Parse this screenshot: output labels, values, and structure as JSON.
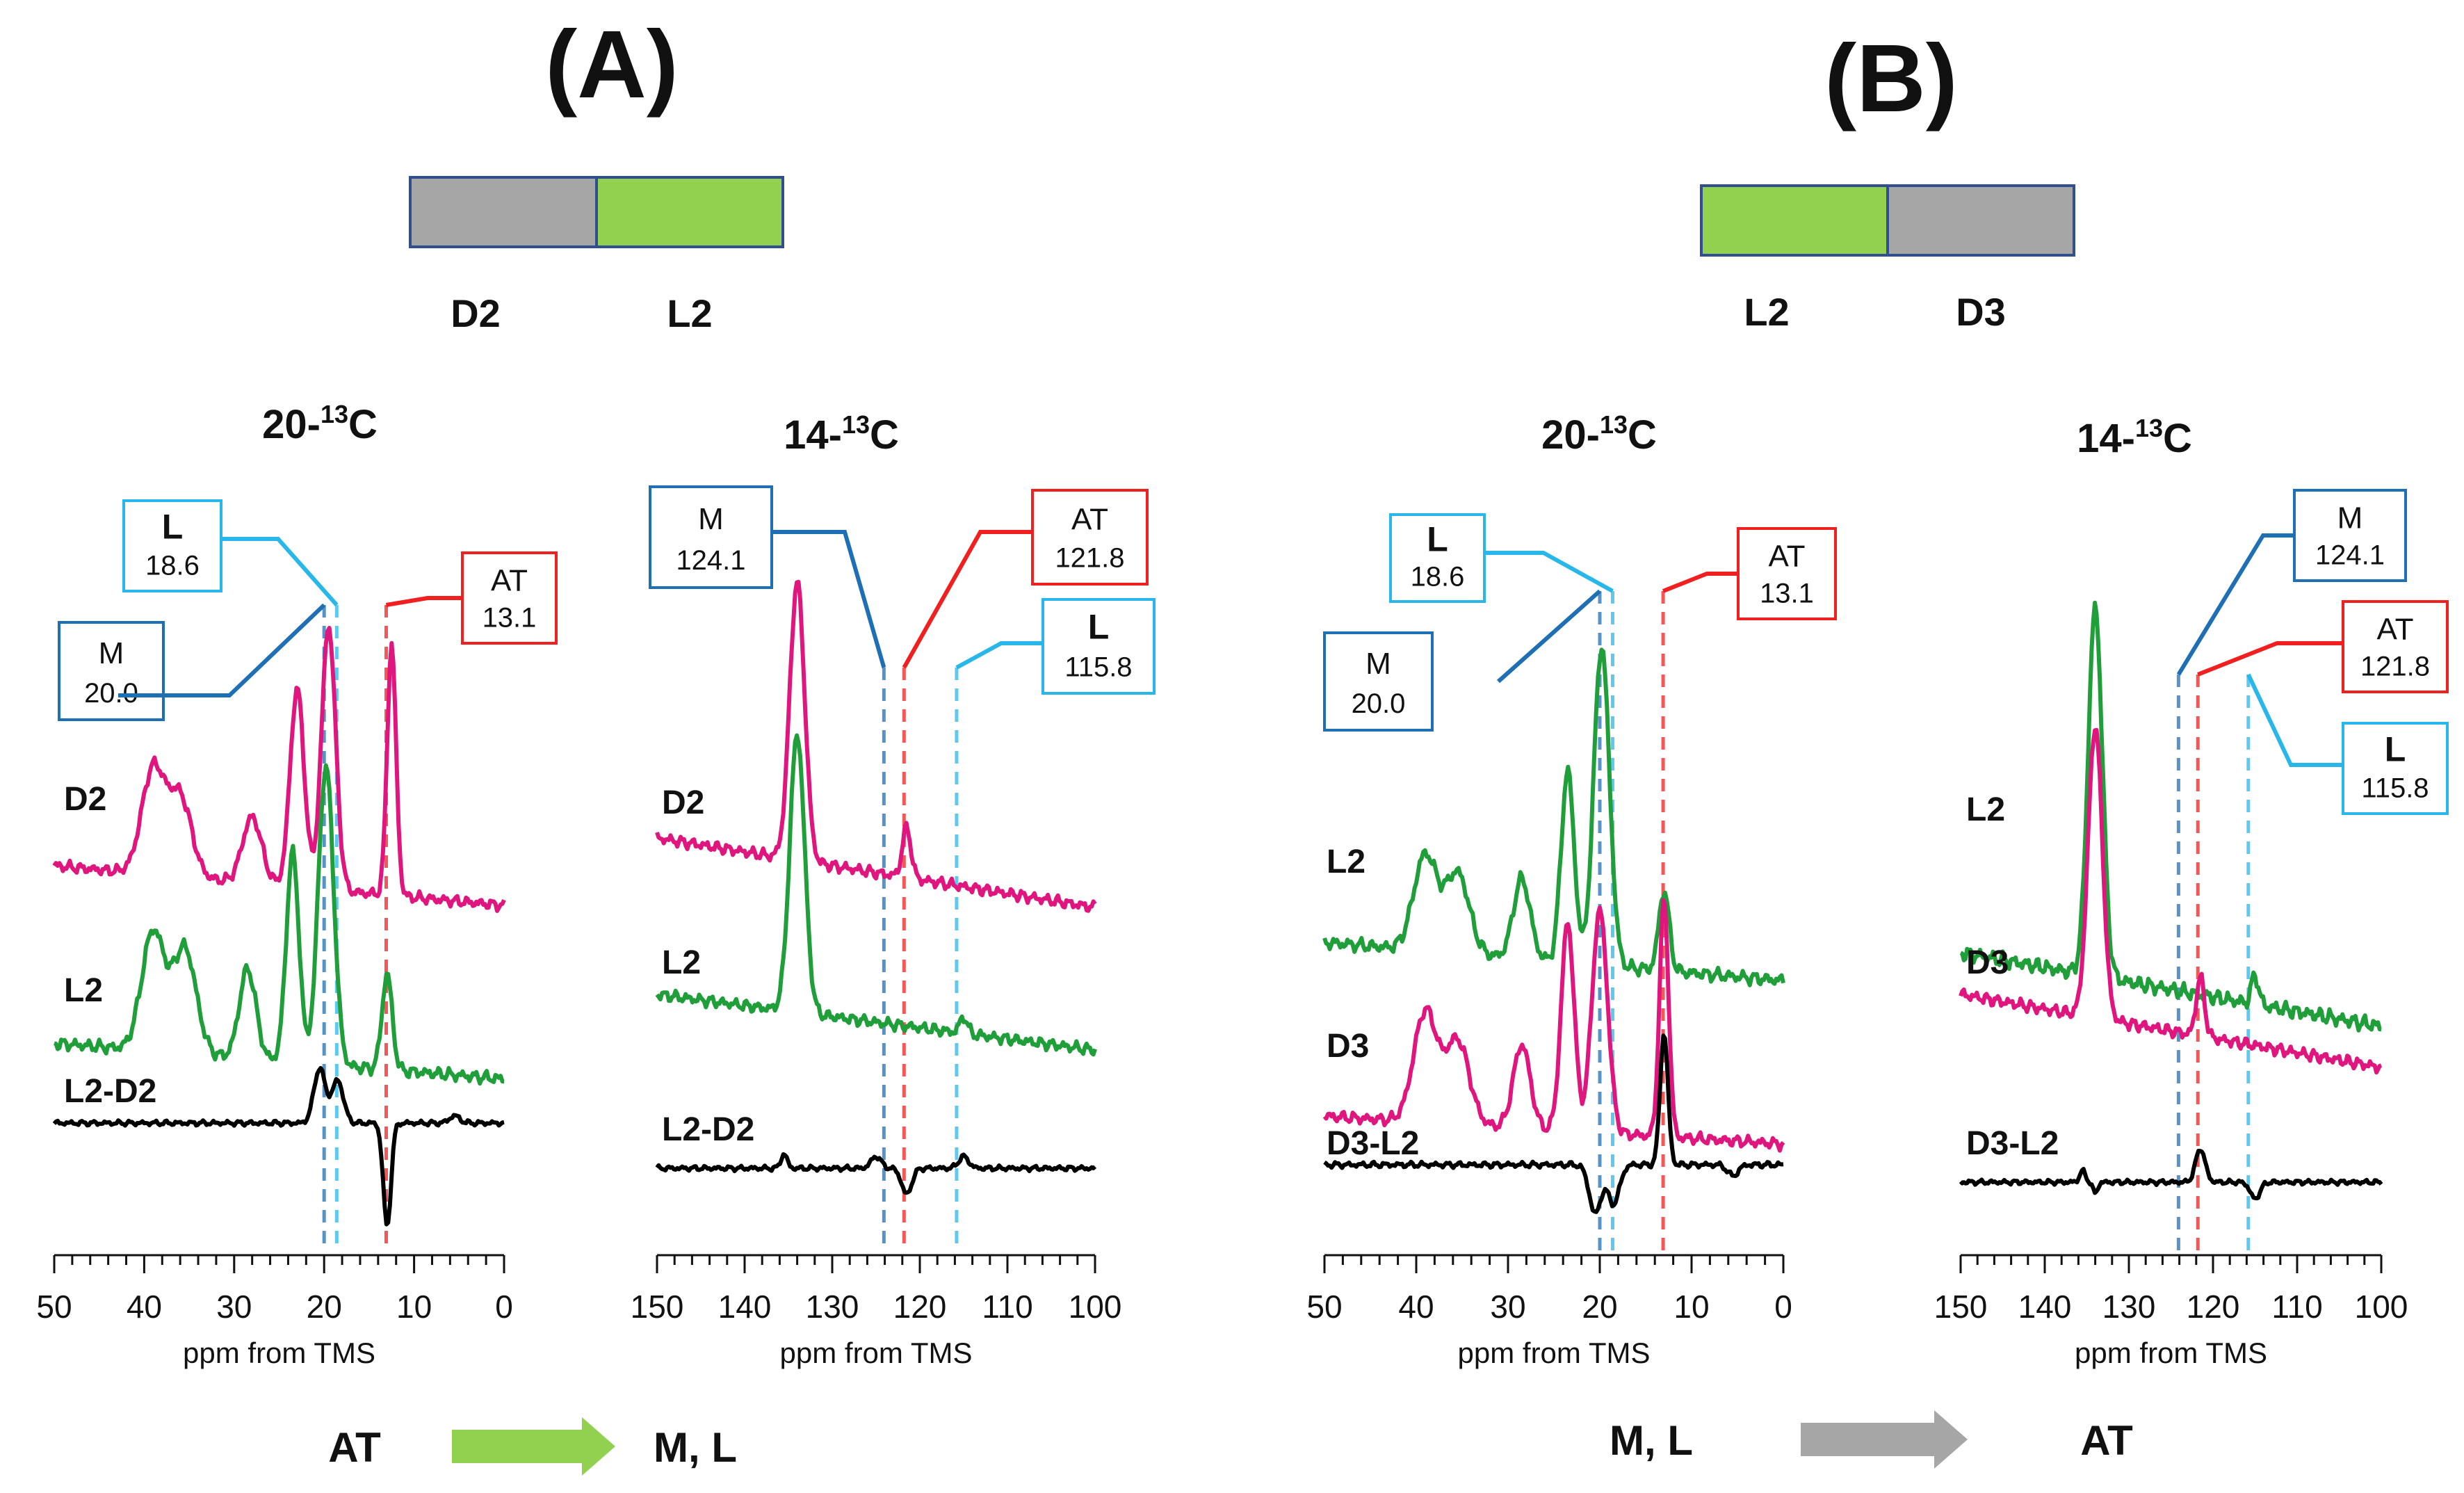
{
  "colors": {
    "magenta": "#e0167f",
    "green": "#1f9e3a",
    "black": "#000000",
    "dark_blue": "#1f6fb5",
    "light_blue": "#29b7ea",
    "red": "#f02020",
    "segment_gray": "#a6a6a6",
    "segment_green": "#92d050",
    "segment_border": "#2f4f8f",
    "arrow_green": "#92d050",
    "arrow_gray": "#a6a6a6"
  },
  "panels": [
    {
      "label": "(A)",
      "segments": [
        {
          "name": "D2",
          "color": "gray"
        },
        {
          "name": "L2",
          "color": "green"
        }
      ],
      "flow": {
        "from": "AT",
        "to": "M, L",
        "arrow_color": "green"
      }
    },
    {
      "label": "(B)",
      "segments": [
        {
          "name": "L2",
          "color": "green"
        },
        {
          "name": "D3",
          "color": "gray"
        }
      ],
      "flow": {
        "from": "M, L",
        "to": "AT",
        "arrow_color": "gray"
      }
    }
  ],
  "chart_data": [
    {
      "id": "A-20",
      "type": "line",
      "title_main": "20-",
      "title_sup": "13",
      "title_tail": "C",
      "title": "20-13C",
      "xlabel": "ppm from TMS",
      "xlim": [
        50,
        0
      ],
      "xticks": [
        "50",
        "40",
        "30",
        "20",
        "10",
        "0"
      ],
      "tick_values": [
        50,
        40,
        30,
        20,
        10,
        0
      ],
      "series": [
        {
          "name": "D2",
          "color": "magenta",
          "peaks": [
            {
              "x": 39,
              "h": 0.4,
              "w": 1.8
            },
            {
              "x": 36,
              "h": 0.3,
              "w": 1.8
            },
            {
              "x": 28,
              "h": 0.25,
              "w": 1.5
            },
            {
              "x": 23,
              "h": 0.75,
              "w": 1.1
            },
            {
              "x": 19.5,
              "h": 1.0,
              "w": 1.1
            },
            {
              "x": 12.5,
              "h": 0.95,
              "w": 0.7
            }
          ],
          "baseline_drop": 0.15
        },
        {
          "name": "L2",
          "color": "green",
          "peaks": [
            {
              "x": 39,
              "h": 0.4,
              "w": 1.8
            },
            {
              "x": 35.5,
              "h": 0.35,
              "w": 1.8
            },
            {
              "x": 28.5,
              "h": 0.3,
              "w": 1.3
            },
            {
              "x": 23.5,
              "h": 0.7,
              "w": 1.0
            },
            {
              "x": 19.8,
              "h": 1.0,
              "w": 1.2
            },
            {
              "x": 13,
              "h": 0.32,
              "w": 0.8
            }
          ],
          "baseline_drop": 0.12
        },
        {
          "name": "L2-D2",
          "color": "black",
          "peaks": [
            {
              "x": 20.5,
              "h": 0.45,
              "w": 0.9
            },
            {
              "x": 18.5,
              "h": 0.35,
              "w": 0.9
            },
            {
              "x": 13,
              "h": -0.85,
              "w": 0.6
            },
            {
              "x": 5.5,
              "h": 0.06,
              "w": 0.8
            }
          ],
          "baseline_drop": 0
        }
      ],
      "markers": [
        {
          "name": "M",
          "value": "20.0",
          "x": 20.0,
          "color": "dark_blue",
          "bold": false
        },
        {
          "name": "L",
          "value": "18.6",
          "x": 18.6,
          "color": "light_blue",
          "bold": true
        },
        {
          "name": "AT",
          "value": "13.1",
          "x": 13.1,
          "color": "red",
          "bold": false
        }
      ]
    },
    {
      "id": "A-14",
      "type": "line",
      "title_main": "14-",
      "title_sup": "13",
      "title_tail": "C",
      "title": "14-13C",
      "xlabel": "ppm from TMS",
      "xlim": [
        150,
        100
      ],
      "xticks": [
        "150",
        "140",
        "130",
        "120",
        "110",
        "100"
      ],
      "tick_values": [
        150,
        140,
        130,
        120,
        110,
        100
      ],
      "series": [
        {
          "name": "D2",
          "color": "magenta",
          "peaks": [
            {
              "x": 134,
              "h": 1.0,
              "w": 1.2
            },
            {
              "x": 121.5,
              "h": 0.18,
              "w": 0.7
            }
          ],
          "baseline_drop": 0.25
        },
        {
          "name": "L2",
          "color": "green",
          "peaks": [
            {
              "x": 134,
              "h": 1.0,
              "w": 1.2
            },
            {
              "x": 115,
              "h": 0.06,
              "w": 0.6
            }
          ],
          "baseline_drop": 0.2
        },
        {
          "name": "L2-D2",
          "color": "black",
          "peaks": [
            {
              "x": 135.5,
              "h": 0.12,
              "w": 0.5
            },
            {
              "x": 125,
              "h": 0.1,
              "w": 0.8
            },
            {
              "x": 121.5,
              "h": -0.22,
              "w": 0.8
            },
            {
              "x": 115,
              "h": 0.1,
              "w": 0.8
            }
          ],
          "baseline_drop": 0
        }
      ],
      "markers": [
        {
          "name": "M",
          "value": "124.1",
          "x": 124.1,
          "color": "dark_blue",
          "bold": false
        },
        {
          "name": "AT",
          "value": "121.8",
          "x": 121.8,
          "color": "red",
          "bold": false
        },
        {
          "name": "L",
          "value": "115.8",
          "x": 115.8,
          "color": "light_blue",
          "bold": true
        }
      ]
    },
    {
      "id": "B-20",
      "type": "line",
      "title_main": "20-",
      "title_sup": "13",
      "title_tail": "C",
      "title": "20-13C",
      "xlabel": "ppm from TMS",
      "xlim": [
        50,
        0
      ],
      "xticks": [
        "50",
        "40",
        "30",
        "20",
        "10",
        "0"
      ],
      "tick_values": [
        50,
        40,
        30,
        20,
        10,
        0
      ],
      "series": [
        {
          "name": "L2",
          "color": "green",
          "peaks": [
            {
              "x": 39,
              "h": 0.3,
              "w": 1.8
            },
            {
              "x": 35.5,
              "h": 0.25,
              "w": 1.8
            },
            {
              "x": 28.5,
              "h": 0.25,
              "w": 1.3
            },
            {
              "x": 23.5,
              "h": 0.6,
              "w": 1.0
            },
            {
              "x": 19.8,
              "h": 1.0,
              "w": 1.2
            },
            {
              "x": 13,
              "h": 0.25,
              "w": 0.8
            }
          ],
          "baseline_drop": 0.12
        },
        {
          "name": "D3",
          "color": "magenta",
          "peaks": [
            {
              "x": 39,
              "h": 0.4,
              "w": 1.8
            },
            {
              "x": 35.5,
              "h": 0.3,
              "w": 1.8
            },
            {
              "x": 28.5,
              "h": 0.3,
              "w": 1.3
            },
            {
              "x": 23.5,
              "h": 0.75,
              "w": 1.0
            },
            {
              "x": 20,
              "h": 0.8,
              "w": 1.2
            },
            {
              "x": 13,
              "h": 0.85,
              "w": 0.7
            }
          ],
          "baseline_drop": 0.1
        },
        {
          "name": "D3-L2",
          "color": "black",
          "peaks": [
            {
              "x": 20.5,
              "h": -0.35,
              "w": 0.9
            },
            {
              "x": 18.5,
              "h": -0.28,
              "w": 0.9
            },
            {
              "x": 13,
              "h": 0.95,
              "w": 0.6
            },
            {
              "x": 5.5,
              "h": -0.08,
              "w": 0.8
            }
          ],
          "baseline_drop": 0
        }
      ],
      "markers": [
        {
          "name": "M",
          "value": "20.0",
          "x": 20.0,
          "color": "dark_blue",
          "bold": false
        },
        {
          "name": "L",
          "value": "18.6",
          "x": 18.6,
          "color": "light_blue",
          "bold": true
        },
        {
          "name": "AT",
          "value": "13.1",
          "x": 13.1,
          "color": "red",
          "bold": false
        }
      ]
    },
    {
      "id": "B-14",
      "type": "line",
      "title_main": "14-",
      "title_sup": "13",
      "title_tail": "C",
      "title": "14-13C",
      "xlabel": "ppm from TMS",
      "xlim": [
        150,
        100
      ],
      "xticks": [
        "150",
        "140",
        "130",
        "120",
        "110",
        "100"
      ],
      "tick_values": [
        150,
        140,
        130,
        120,
        110,
        100
      ],
      "series": [
        {
          "name": "L2",
          "color": "green",
          "peaks": [
            {
              "x": 134,
              "h": 1.0,
              "w": 1.2
            },
            {
              "x": 115,
              "h": 0.08,
              "w": 0.6
            }
          ],
          "baseline_drop": 0.2
        },
        {
          "name": "D3",
          "color": "magenta",
          "peaks": [
            {
              "x": 134,
              "h": 1.0,
              "w": 1.2
            },
            {
              "x": 121.5,
              "h": 0.2,
              "w": 0.7
            }
          ],
          "baseline_drop": 0.25
        },
        {
          "name": "D3-L2",
          "color": "black",
          "peaks": [
            {
              "x": 135.5,
              "h": 0.1,
              "w": 0.5
            },
            {
              "x": 134,
              "h": -0.1,
              "w": 0.4
            },
            {
              "x": 121.5,
              "h": 0.3,
              "w": 0.8
            },
            {
              "x": 115,
              "h": -0.15,
              "w": 0.8
            }
          ],
          "baseline_drop": 0
        }
      ],
      "markers": [
        {
          "name": "M",
          "value": "124.1",
          "x": 124.1,
          "color": "dark_blue",
          "bold": false
        },
        {
          "name": "AT",
          "value": "121.8",
          "x": 121.8,
          "color": "red",
          "bold": false
        },
        {
          "name": "L",
          "value": "115.8",
          "x": 115.8,
          "color": "light_blue",
          "bold": true
        }
      ]
    }
  ]
}
